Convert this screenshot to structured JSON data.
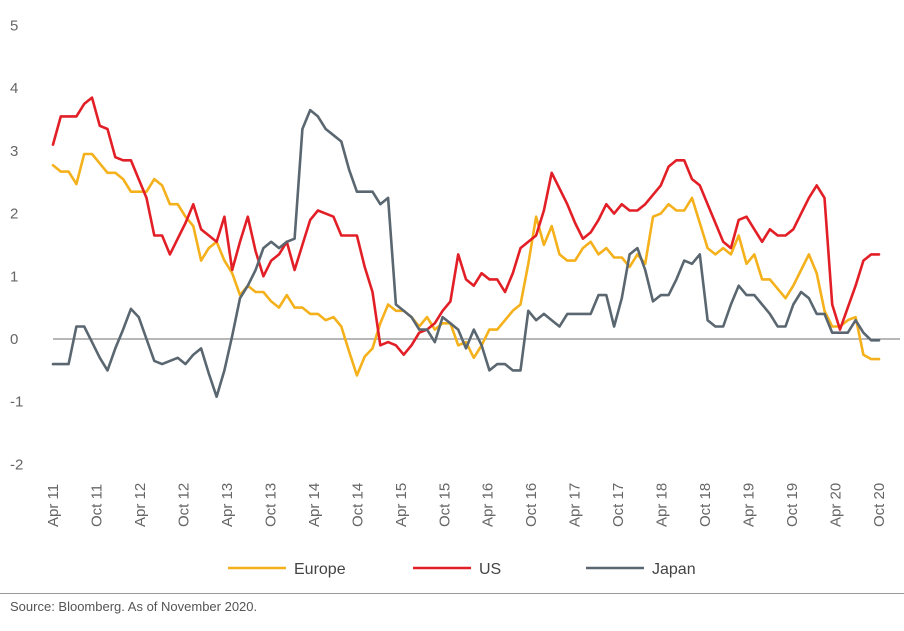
{
  "chart_data": {
    "type": "line",
    "ylim": [
      -2,
      5
    ],
    "yticks": [
      -2,
      -1,
      0,
      1,
      2,
      3,
      4,
      5
    ],
    "x_months_from": "Apr 11",
    "x_tick_labels": [
      "Apr 11",
      "Oct 11",
      "Apr 12",
      "Oct 12",
      "Apr 13",
      "Oct 13",
      "Apr 14",
      "Oct 14",
      "Apr 15",
      "Oct 15",
      "Apr 16",
      "Oct 16",
      "Apr 17",
      "Oct 17",
      "Apr 18",
      "Oct 18",
      "Apr 19",
      "Oct 19",
      "Apr 20",
      "Oct 20"
    ],
    "zero_line": true,
    "legend_position": "bottom-center",
    "series": [
      {
        "name": "Europe",
        "color": "#F5B11C",
        "points": [
          [
            0,
            2.77
          ],
          [
            1,
            2.67
          ],
          [
            2,
            2.67
          ],
          [
            3,
            2.47
          ],
          [
            4,
            2.95
          ],
          [
            5,
            2.95
          ],
          [
            6,
            2.8
          ],
          [
            7,
            2.65
          ],
          [
            8,
            2.65
          ],
          [
            9,
            2.55
          ],
          [
            10,
            2.35
          ],
          [
            11,
            2.35
          ],
          [
            12,
            2.35
          ],
          [
            13,
            2.55
          ],
          [
            14,
            2.45
          ],
          [
            15,
            2.15
          ],
          [
            16,
            2.15
          ],
          [
            17,
            1.95
          ],
          [
            18,
            1.8
          ],
          [
            19,
            1.25
          ],
          [
            20,
            1.45
          ],
          [
            21,
            1.55
          ],
          [
            22,
            1.25
          ],
          [
            23,
            1.05
          ],
          [
            24,
            0.7
          ],
          [
            25,
            0.85
          ],
          [
            26,
            0.75
          ],
          [
            27,
            0.75
          ],
          [
            28,
            0.6
          ],
          [
            29,
            0.5
          ],
          [
            30,
            0.7
          ],
          [
            31,
            0.5
          ],
          [
            32,
            0.5
          ],
          [
            33,
            0.4
          ],
          [
            34,
            0.4
          ],
          [
            35,
            0.3
          ],
          [
            36,
            0.35
          ],
          [
            37,
            0.2
          ],
          [
            38,
            -0.2
          ],
          [
            39,
            -0.58
          ],
          [
            40,
            -0.28
          ],
          [
            41,
            -0.15
          ],
          [
            42,
            0.25
          ],
          [
            43,
            0.55
          ],
          [
            44,
            0.45
          ],
          [
            45,
            0.45
          ],
          [
            46,
            0.35
          ],
          [
            47,
            0.2
          ],
          [
            48,
            0.35
          ],
          [
            49,
            0.15
          ],
          [
            50,
            0.25
          ],
          [
            51,
            0.25
          ],
          [
            52,
            -0.1
          ],
          [
            53,
            -0.05
          ],
          [
            54,
            -0.3
          ],
          [
            55,
            -0.1
          ],
          [
            56,
            0.15
          ],
          [
            57,
            0.15
          ],
          [
            58,
            0.3
          ],
          [
            59,
            0.45
          ],
          [
            60,
            0.55
          ],
          [
            61,
            1.2
          ],
          [
            62,
            1.95
          ],
          [
            63,
            1.5
          ],
          [
            64,
            1.8
          ],
          [
            65,
            1.35
          ],
          [
            66,
            1.25
          ],
          [
            67,
            1.25
          ],
          [
            68,
            1.45
          ],
          [
            69,
            1.55
          ],
          [
            70,
            1.35
          ],
          [
            71,
            1.45
          ],
          [
            72,
            1.3
          ],
          [
            73,
            1.3
          ],
          [
            74,
            1.15
          ],
          [
            75,
            1.35
          ],
          [
            76,
            1.2
          ],
          [
            77,
            1.95
          ],
          [
            78,
            2.0
          ],
          [
            79,
            2.15
          ],
          [
            80,
            2.05
          ],
          [
            81,
            2.05
          ],
          [
            82,
            2.25
          ],
          [
            83,
            1.85
          ],
          [
            84,
            1.45
          ],
          [
            85,
            1.35
          ],
          [
            86,
            1.45
          ],
          [
            87,
            1.35
          ],
          [
            88,
            1.65
          ],
          [
            89,
            1.2
          ],
          [
            90,
            1.35
          ],
          [
            91,
            0.95
          ],
          [
            92,
            0.95
          ],
          [
            93,
            0.8
          ],
          [
            94,
            0.65
          ],
          [
            95,
            0.85
          ],
          [
            96,
            1.1
          ],
          [
            97,
            1.35
          ],
          [
            98,
            1.05
          ],
          [
            99,
            0.45
          ],
          [
            100,
            0.2
          ],
          [
            101,
            0.2
          ],
          [
            102,
            0.3
          ],
          [
            103,
            0.35
          ],
          [
            104,
            -0.25
          ],
          [
            105,
            -0.32
          ],
          [
            106,
            -0.32
          ]
        ]
      },
      {
        "name": "US",
        "color": "#E21F26",
        "points": [
          [
            0,
            3.1
          ],
          [
            1,
            3.55
          ],
          [
            2,
            3.55
          ],
          [
            3,
            3.55
          ],
          [
            4,
            3.75
          ],
          [
            5,
            3.85
          ],
          [
            6,
            3.4
          ],
          [
            7,
            3.35
          ],
          [
            8,
            2.9
          ],
          [
            9,
            2.85
          ],
          [
            10,
            2.85
          ],
          [
            11,
            2.55
          ],
          [
            12,
            2.25
          ],
          [
            13,
            1.65
          ],
          [
            14,
            1.65
          ],
          [
            15,
            1.35
          ],
          [
            16,
            1.6
          ],
          [
            17,
            1.85
          ],
          [
            18,
            2.15
          ],
          [
            19,
            1.75
          ],
          [
            20,
            1.65
          ],
          [
            21,
            1.55
          ],
          [
            22,
            1.95
          ],
          [
            23,
            1.1
          ],
          [
            24,
            1.55
          ],
          [
            25,
            1.95
          ],
          [
            26,
            1.4
          ],
          [
            27,
            1.0
          ],
          [
            28,
            1.25
          ],
          [
            29,
            1.35
          ],
          [
            30,
            1.55
          ],
          [
            31,
            1.1
          ],
          [
            32,
            1.5
          ],
          [
            33,
            1.9
          ],
          [
            34,
            2.05
          ],
          [
            35,
            2.0
          ],
          [
            36,
            1.95
          ],
          [
            37,
            1.65
          ],
          [
            38,
            1.65
          ],
          [
            39,
            1.65
          ],
          [
            40,
            1.15
          ],
          [
            41,
            0.75
          ],
          [
            42,
            -0.1
          ],
          [
            43,
            -0.05
          ],
          [
            44,
            -0.1
          ],
          [
            45,
            -0.25
          ],
          [
            46,
            -0.1
          ],
          [
            47,
            0.1
          ],
          [
            48,
            0.15
          ],
          [
            49,
            0.25
          ],
          [
            50,
            0.45
          ],
          [
            51,
            0.6
          ],
          [
            52,
            1.35
          ],
          [
            53,
            0.95
          ],
          [
            54,
            0.85
          ],
          [
            55,
            1.05
          ],
          [
            56,
            0.95
          ],
          [
            57,
            0.95
          ],
          [
            58,
            0.75
          ],
          [
            59,
            1.05
          ],
          [
            60,
            1.45
          ],
          [
            61,
            1.55
          ],
          [
            62,
            1.65
          ],
          [
            63,
            2.05
          ],
          [
            64,
            2.65
          ],
          [
            65,
            2.4
          ],
          [
            66,
            2.15
          ],
          [
            67,
            1.85
          ],
          [
            68,
            1.6
          ],
          [
            69,
            1.7
          ],
          [
            70,
            1.9
          ],
          [
            71,
            2.15
          ],
          [
            72,
            2.0
          ],
          [
            73,
            2.15
          ],
          [
            74,
            2.05
          ],
          [
            75,
            2.05
          ],
          [
            76,
            2.15
          ],
          [
            77,
            2.3
          ],
          [
            78,
            2.45
          ],
          [
            79,
            2.75
          ],
          [
            80,
            2.85
          ],
          [
            81,
            2.85
          ],
          [
            82,
            2.55
          ],
          [
            83,
            2.45
          ],
          [
            84,
            2.15
          ],
          [
            85,
            1.85
          ],
          [
            86,
            1.55
          ],
          [
            87,
            1.45
          ],
          [
            88,
            1.9
          ],
          [
            89,
            1.95
          ],
          [
            90,
            1.75
          ],
          [
            91,
            1.55
          ],
          [
            92,
            1.75
          ],
          [
            93,
            1.65
          ],
          [
            94,
            1.65
          ],
          [
            95,
            1.75
          ],
          [
            96,
            2.0
          ],
          [
            97,
            2.25
          ],
          [
            98,
            2.45
          ],
          [
            99,
            2.25
          ],
          [
            100,
            0.55
          ],
          [
            101,
            0.15
          ],
          [
            102,
            0.5
          ],
          [
            103,
            0.85
          ],
          [
            104,
            1.25
          ],
          [
            105,
            1.35
          ],
          [
            106,
            1.35
          ]
        ]
      },
      {
        "name": "Japan",
        "color": "#5A6770",
        "points": [
          [
            0,
            -0.4
          ],
          [
            1,
            -0.4
          ],
          [
            2,
            -0.4
          ],
          [
            3,
            0.2
          ],
          [
            4,
            0.2
          ],
          [
            5,
            -0.05
          ],
          [
            6,
            -0.3
          ],
          [
            7,
            -0.5
          ],
          [
            8,
            -0.15
          ],
          [
            9,
            0.15
          ],
          [
            10,
            0.48
          ],
          [
            11,
            0.35
          ],
          [
            12,
            0.0
          ],
          [
            13,
            -0.35
          ],
          [
            14,
            -0.4
          ],
          [
            15,
            -0.35
          ],
          [
            16,
            -0.3
          ],
          [
            17,
            -0.4
          ],
          [
            18,
            -0.25
          ],
          [
            19,
            -0.15
          ],
          [
            20,
            -0.55
          ],
          [
            21,
            -0.92
          ],
          [
            22,
            -0.5
          ],
          [
            23,
            0.05
          ],
          [
            24,
            0.65
          ],
          [
            25,
            0.85
          ],
          [
            26,
            1.1
          ],
          [
            27,
            1.45
          ],
          [
            28,
            1.55
          ],
          [
            29,
            1.45
          ],
          [
            30,
            1.55
          ],
          [
            31,
            1.6
          ],
          [
            32,
            3.35
          ],
          [
            33,
            3.65
          ],
          [
            34,
            3.55
          ],
          [
            35,
            3.35
          ],
          [
            36,
            3.25
          ],
          [
            37,
            3.15
          ],
          [
            38,
            2.7
          ],
          [
            39,
            2.35
          ],
          [
            40,
            2.35
          ],
          [
            41,
            2.35
          ],
          [
            42,
            2.15
          ],
          [
            43,
            2.25
          ],
          [
            44,
            0.55
          ],
          [
            45,
            0.45
          ],
          [
            46,
            0.35
          ],
          [
            47,
            0.15
          ],
          [
            48,
            0.15
          ],
          [
            49,
            -0.05
          ],
          [
            50,
            0.35
          ],
          [
            51,
            0.25
          ],
          [
            52,
            0.15
          ],
          [
            53,
            -0.15
          ],
          [
            54,
            0.15
          ],
          [
            55,
            -0.1
          ],
          [
            56,
            -0.5
          ],
          [
            57,
            -0.4
          ],
          [
            58,
            -0.4
          ],
          [
            59,
            -0.5
          ],
          [
            60,
            -0.5
          ],
          [
            61,
            0.45
          ],
          [
            62,
            0.3
          ],
          [
            63,
            0.4
          ],
          [
            64,
            0.3
          ],
          [
            65,
            0.2
          ],
          [
            66,
            0.4
          ],
          [
            67,
            0.4
          ],
          [
            68,
            0.4
          ],
          [
            69,
            0.4
          ],
          [
            70,
            0.7
          ],
          [
            71,
            0.7
          ],
          [
            72,
            0.2
          ],
          [
            73,
            0.65
          ],
          [
            74,
            1.35
          ],
          [
            75,
            1.45
          ],
          [
            76,
            1.1
          ],
          [
            77,
            0.6
          ],
          [
            78,
            0.7
          ],
          [
            79,
            0.7
          ],
          [
            80,
            0.95
          ],
          [
            81,
            1.25
          ],
          [
            82,
            1.2
          ],
          [
            83,
            1.35
          ],
          [
            84,
            0.3
          ],
          [
            85,
            0.2
          ],
          [
            86,
            0.2
          ],
          [
            87,
            0.55
          ],
          [
            88,
            0.85
          ],
          [
            89,
            0.7
          ],
          [
            90,
            0.7
          ],
          [
            91,
            0.55
          ],
          [
            92,
            0.4
          ],
          [
            93,
            0.2
          ],
          [
            94,
            0.2
          ],
          [
            95,
            0.55
          ],
          [
            96,
            0.75
          ],
          [
            97,
            0.65
          ],
          [
            98,
            0.4
          ],
          [
            99,
            0.4
          ],
          [
            100,
            0.1
          ],
          [
            101,
            0.1
          ],
          [
            102,
            0.1
          ],
          [
            103,
            0.3
          ],
          [
            104,
            0.1
          ],
          [
            105,
            -0.02
          ],
          [
            106,
            -0.02
          ]
        ]
      }
    ]
  },
  "source_note": "Source: Bloomberg. As of November 2020."
}
